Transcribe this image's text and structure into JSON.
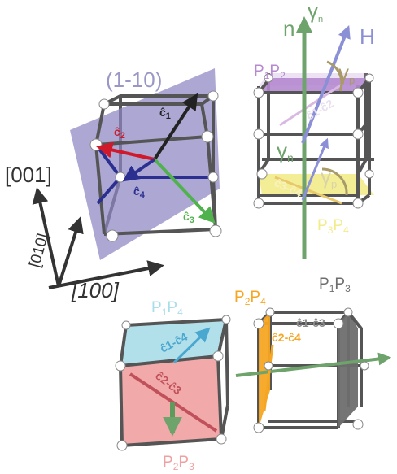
{
  "plane_label": "(1-10)",
  "axes": {
    "z": "[001]",
    "y": "[010]",
    "x": "[100]"
  },
  "vectors": {
    "c1": "ĉ",
    "c1_sub": "1",
    "c2": "ĉ",
    "c2_sub": "2",
    "c3": "ĉ",
    "c3_sub": "3",
    "c4": "ĉ",
    "c4_sub": "4"
  },
  "right_top": {
    "n": "n",
    "gamma_n": "γ",
    "gamma_n_sub": "n",
    "H": "H",
    "gamma_p": "γ",
    "gamma_p_sub": "p",
    "gamma_n2": "γ",
    "gamma_n2_sub": "n",
    "gamma_p2": "γ",
    "gamma_p2_sub": "p",
    "p1p2": {
      "a": "P",
      "a_sub": "1",
      "b": "P",
      "b_sub": "2"
    },
    "p3p4": {
      "a": "P",
      "a_sub": "3",
      "b": "P",
      "b_sub": "4"
    },
    "c1c2": "ĉ1-ĉ2",
    "c3c4": "ĉ3-ĉ4"
  },
  "bottom_left": {
    "top_label": {
      "a": "P",
      "a_sub": "1",
      "b": "P",
      "b_sub": "4"
    },
    "bottom_label": {
      "a": "P",
      "a_sub": "2",
      "b": "P",
      "b_sub": "3"
    },
    "c1c4": "ĉ1-ĉ4",
    "c2c3": "ĉ2-ĉ3"
  },
  "bottom_right": {
    "label_left": {
      "a": "P",
      "a_sub": "2",
      "b": "P",
      "b_sub": "4"
    },
    "label_right": {
      "a": "P",
      "a_sub": "1",
      "b": "P",
      "b_sub": "3"
    },
    "c1c3": "ĉ1-ĉ3",
    "c2c4": "ĉ2-ĉ4"
  },
  "colors": {
    "plane": "#8c87c2",
    "frame": "#555555",
    "blue": "#2b2f8f",
    "red": "#d0192b",
    "green_vec": "#4fb24c",
    "normal_green": "#6ea36b",
    "h_blue": "#8a8fd6",
    "purple_plane": "#b58ad0",
    "yellow_plane": "#f2ec8a",
    "cyan_plane": "#a9dde9",
    "pink_plane": "#f0a0a0",
    "orange_plane": "#f5a623",
    "gray_plane": "#6e6e6e"
  }
}
